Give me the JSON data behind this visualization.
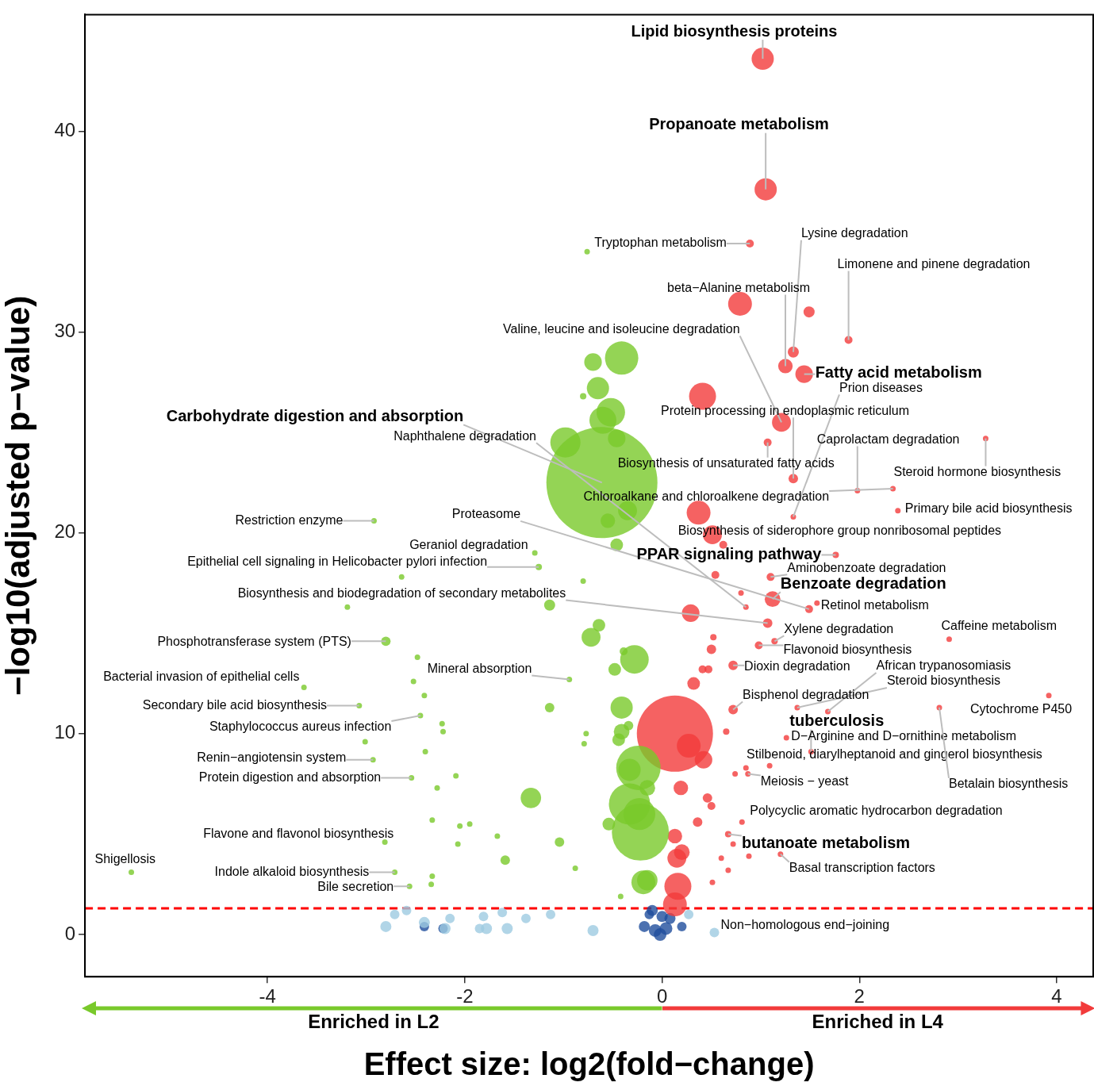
{
  "chart_data": {
    "type": "bubble",
    "xlabel": "Effect size: log2(fold−change)",
    "ylabel": "−log10(adjusted p−value)",
    "xlim": [
      -5.85,
      4.37
    ],
    "ylim": [
      -2.1,
      45.8
    ],
    "xticks": [
      -4,
      -2,
      0,
      2,
      4
    ],
    "yticks": [
      0,
      10,
      20,
      30,
      40
    ],
    "series": [
      {
        "color": "#79c92b",
        "x": [
          -0.76,
          -0.41,
          -0.7,
          -0.65,
          -0.8,
          -0.52,
          -0.6,
          -0.98,
          -0.46,
          -0.61,
          -0.35,
          -0.55,
          -0.46,
          -2.92,
          -1.29,
          -1.25,
          -2.64,
          -0.8,
          -1.14,
          -3.19,
          -0.64,
          -0.72,
          -2.8,
          -0.28,
          -0.39,
          -0.48,
          -2.48,
          -0.94,
          -2.52,
          -3.63,
          -2.41,
          -0.41,
          -1.14,
          -3.07,
          -2.45,
          -2.23,
          -2.22,
          -0.41,
          -0.34,
          -0.44,
          -0.77,
          -0.79,
          -3.01,
          -0.24,
          -2.4,
          -2.93,
          -0.15,
          -2.54,
          -2.09,
          -2.28,
          -1.33,
          -0.33,
          -0.23,
          -0.54,
          -2.33,
          -2.05,
          -1.95,
          -0.22,
          -1.67,
          -1.04,
          -2.81,
          -2.07,
          -1.59,
          -0.88,
          -5.38,
          -2.71,
          -2.33,
          -2.34,
          -0.15,
          -2.56,
          -0.42,
          -0.33,
          -0.19
        ],
        "values": [
          34.0,
          28.7,
          28.5,
          27.2,
          26.8,
          26.0,
          25.6,
          24.5,
          24.7,
          22.5,
          21.1,
          20.6,
          19.4,
          20.6,
          19.0,
          18.3,
          17.8,
          17.6,
          16.4,
          16.3,
          15.4,
          14.8,
          14.6,
          13.7,
          14.1,
          13.2,
          13.8,
          12.7,
          12.6,
          12.3,
          11.9,
          11.3,
          11.3,
          11.4,
          10.9,
          10.5,
          10.1,
          10.1,
          10.4,
          9.7,
          10.0,
          9.5,
          9.6,
          8.3,
          9.1,
          8.7,
          7.3,
          7.8,
          7.9,
          7.3,
          6.8,
          6.5,
          6.0,
          5.5,
          5.7,
          5.4,
          5.5,
          5.1,
          4.9,
          4.6,
          4.6,
          4.5,
          3.7,
          3.3,
          3.1,
          3.1,
          2.9,
          2.5,
          2.7,
          2.4,
          1.9,
          8.2,
          2.6
        ],
        "sizes": [
          0.0025,
          0.09,
          0.025,
          0.04,
          0.0033,
          0.066,
          0.059,
          0.074,
          0.025,
          1,
          0.029,
          0.017,
          0.013,
          0.0025,
          0.0025,
          0.0033,
          0.0025,
          0.0025,
          0.01,
          0.0025,
          0.013,
          0.029,
          0.0073,
          0.066,
          0.0051,
          0.013,
          0.0025,
          0.0025,
          0.0025,
          0.0025,
          0.0025,
          0.04,
          0.0073,
          0.0025,
          0.0025,
          0.0025,
          0.0025,
          0.02,
          0.0073,
          0.013,
          0.0025,
          0.0025,
          0.0025,
          0.16,
          0.0025,
          0.0025,
          0.02,
          0.0025,
          0.0025,
          0.0025,
          0.034,
          0.138,
          0.082,
          0.013,
          0.0025,
          0.0025,
          0.0025,
          0.264,
          0.0025,
          0.0073,
          0.0025,
          0.0025,
          0.0073,
          0.0025,
          0.0025,
          0.0025,
          0.0025,
          0.0025,
          0.034,
          0.0025,
          0.0025,
          0.04,
          0.046
        ]
      },
      {
        "color": "#f23b3b",
        "x": [
          1.02,
          1.05,
          0.89,
          0.79,
          1.49,
          1.89,
          1.33,
          1.25,
          1.44,
          0.41,
          1.21,
          1.07,
          3.28,
          1.33,
          1.98,
          2.34,
          2.39,
          1.33,
          0.37,
          0.51,
          0.62,
          1.76,
          0.54,
          1.1,
          1.12,
          0.8,
          0.85,
          1.57,
          1.49,
          0.29,
          1.07,
          0.52,
          0.98,
          0.5,
          1.14,
          2.91,
          0.72,
          0.41,
          0.47,
          0.32,
          3.92,
          0.72,
          0.13,
          0.27,
          0.42,
          0.65,
          1.37,
          1.68,
          2.81,
          1.26,
          1.51,
          1.09,
          0.85,
          0.74,
          0.87,
          0.19,
          0.46,
          0.5,
          0.81,
          0.36,
          0.67,
          0.72,
          0.13,
          0.15,
          0.2,
          0.16,
          0.13,
          0.6,
          0.51,
          0.88,
          1.2,
          0.67
        ],
        "values": [
          43.6,
          37.1,
          34.4,
          31.4,
          31.0,
          29.6,
          29.0,
          28.3,
          27.9,
          26.8,
          25.5,
          24.5,
          24.7,
          22.7,
          22.1,
          22.2,
          21.1,
          20.8,
          21.0,
          19.9,
          19.4,
          18.9,
          17.9,
          17.8,
          16.7,
          17.0,
          16.3,
          16.5,
          16.2,
          16.0,
          15.5,
          14.8,
          14.4,
          14.2,
          14.6,
          14.7,
          13.4,
          13.2,
          13.2,
          12.5,
          11.9,
          11.2,
          10.0,
          9.4,
          8.7,
          10.1,
          11.3,
          11.1,
          11.3,
          9.8,
          9.1,
          8.4,
          8.3,
          8.0,
          8.0,
          7.3,
          6.8,
          6.4,
          5.6,
          5.6,
          5.0,
          4.5,
          4.9,
          3.8,
          4.1,
          2.4,
          1.5,
          3.8,
          2.6,
          3.9,
          4.0,
          3.2
        ],
        "sizes": [
          0.04,
          0.04,
          0.0051,
          0.046,
          0.01,
          0.0051,
          0.01,
          0.017,
          0.025,
          0.059,
          0.029,
          0.0051,
          0.0025,
          0.0073,
          0.0025,
          0.0025,
          0.0025,
          0.0025,
          0.046,
          0.029,
          0.0051,
          0.0033,
          0.0051,
          0.0051,
          0.02,
          0.0025,
          0.0025,
          0.0025,
          0.0051,
          0.025,
          0.0073,
          0.0033,
          0.0051,
          0.0073,
          0.0033,
          0.0025,
          0.0073,
          0.0051,
          0.0051,
          0.013,
          0.0025,
          0.0073,
          0.47,
          0.046,
          0.025,
          0.0033,
          0.0025,
          0.0025,
          0.0025,
          0.0025,
          0.0025,
          0.0025,
          0.0025,
          0.0025,
          0.0025,
          0.017,
          0.0073,
          0.0051,
          0.0025,
          0.0073,
          0.0033,
          0.0025,
          0.017,
          0.029,
          0.02,
          0.059,
          0.046,
          0.0025,
          0.0025,
          0.0025,
          0.0025,
          0.0025
        ]
      },
      {
        "color": "#9ecae1",
        "x": [
          -2.8,
          -2.71,
          -2.59,
          -2.41,
          -2.2,
          -2.15,
          -1.85,
          -1.81,
          -1.78,
          -1.62,
          -1.57,
          -1.38,
          -1.13,
          -0.7,
          0.27,
          0.53
        ],
        "values": [
          0.4,
          1.0,
          1.2,
          0.6,
          0.3,
          0.8,
          0.3,
          0.9,
          0.3,
          1.1,
          0.3,
          0.8,
          1.0,
          0.2,
          1.0,
          0.1
        ],
        "sizes": [
          0.01,
          0.0073,
          0.0073,
          0.01,
          0.01,
          0.0073,
          0.0073,
          0.0073,
          0.01,
          0.0073,
          0.01,
          0.0073,
          0.0073,
          0.01,
          0.0073,
          0.0073
        ]
      },
      {
        "color": "#1f4e9c",
        "x": [
          -0.18,
          -0.1,
          -0.07,
          -0.02,
          0.04,
          0.08,
          0.0,
          0.2,
          -0.13,
          -2.22,
          -2.41
        ],
        "values": [
          0.4,
          1.2,
          0.2,
          0.0,
          0.3,
          0.8,
          0.9,
          0.4,
          1.0,
          0.3,
          0.4
        ],
        "sizes": [
          0.01,
          0.01,
          0.013,
          0.013,
          0.013,
          0.01,
          0.01,
          0.0073,
          0.0073,
          0.0073,
          0.0073
        ]
      }
    ],
    "ref_lines": [
      {
        "axis": "y",
        "value": 1.3,
        "color": "#ff0000",
        "line_style": "dashed"
      }
    ],
    "annotations": [
      {
        "text": "Lipid biosynthesis proteins",
        "x": 1.02,
        "y": 43.6
      },
      {
        "text": "Propanoate metabolism",
        "x": 1.05,
        "y": 37.1
      },
      {
        "text": "Tryptophan metabolism",
        "x": 0.89,
        "y": 34.4
      },
      {
        "text": "Lysine degradation",
        "x": 1.33,
        "y": 29.0
      },
      {
        "text": "Limonene and pinene degradation",
        "x": 1.89,
        "y": 29.6
      },
      {
        "text": "beta−Alanine metabolism",
        "x": 1.25,
        "y": 28.3
      },
      {
        "text": "Valine, leucine and isoleucine degradation",
        "x": 1.21,
        "y": 25.5
      },
      {
        "text": "Fatty acid metabolism",
        "x": 1.44,
        "y": 27.9
      },
      {
        "text": "Prion diseases",
        "x": 1.33,
        "y": 20.8
      },
      {
        "text": "Protein processing in endoplasmic reticulum",
        "x": 1.33,
        "y": 22.7
      },
      {
        "text": "Caprolactam degradation",
        "x": 1.98,
        "y": 22.1
      },
      {
        "text": "Steroid hormone biosynthesis",
        "x": 3.28,
        "y": 24.7
      },
      {
        "text": "Primary bile acid biosynthesis",
        "x": 2.39,
        "y": 21.1
      },
      {
        "text": "Carbohydrate digestion and absorption",
        "x": -0.61,
        "y": 22.5
      },
      {
        "text": "Naphthalene degradation",
        "x": 0.85,
        "y": 16.3
      },
      {
        "text": "Biosynthesis of unsaturated fatty acids",
        "x": 1.07,
        "y": 24.5
      },
      {
        "text": "Chloroalkane and chloroalkene degradation",
        "x": 2.34,
        "y": 22.2
      },
      {
        "text": "Restriction enzyme",
        "x": -2.92,
        "y": 20.6
      },
      {
        "text": "Proteasome",
        "x": 1.49,
        "y": 16.2
      },
      {
        "text": "Biosynthesis of siderophore group nonribosomal peptides",
        "x": 0.62,
        "y": 19.4
      },
      {
        "text": "Geraniol degradation",
        "x": -1.29,
        "y": 19.0
      },
      {
        "text": "PPAR signaling pathway",
        "x": 1.76,
        "y": 18.9
      },
      {
        "text": "Epithelial cell signaling in Helicobacter pylori infection",
        "x": -1.25,
        "y": 18.3
      },
      {
        "text": "Aminobenzoate degradation",
        "x": 1.1,
        "y": 17.8
      },
      {
        "text": "Benzoate degradation",
        "x": 1.12,
        "y": 16.7
      },
      {
        "text": "Biosynthesis and biodegradation of secondary metabolites",
        "x": 1.07,
        "y": 15.5
      },
      {
        "text": "Retinol metabolism",
        "x": 1.57,
        "y": 16.5
      },
      {
        "text": "Xylene degradation",
        "x": 1.14,
        "y": 14.6
      },
      {
        "text": "Caffeine metabolism",
        "x": 2.91,
        "y": 14.7
      },
      {
        "text": "Flavonoid biosynthesis",
        "x": 0.98,
        "y": 14.4
      },
      {
        "text": "Phosphotransferase system (PTS)",
        "x": -2.8,
        "y": 14.6
      },
      {
        "text": "Mineral absorption",
        "x": -0.94,
        "y": 12.7
      },
      {
        "text": "Bacterial invasion of epithelial cells",
        "x": -3.63,
        "y": 12.3
      },
      {
        "text": "Dioxin degradation",
        "x": 0.72,
        "y": 13.4
      },
      {
        "text": "African trypanosomiasis",
        "x": 1.68,
        "y": 11.1
      },
      {
        "text": "Steroid biosynthesis",
        "x": 1.37,
        "y": 11.3
      },
      {
        "text": "Bisphenol degradation",
        "x": 0.72,
        "y": 11.2
      },
      {
        "text": "Cytochrome P450",
        "x": 3.92,
        "y": 11.9
      },
      {
        "text": "Secondary bile acid biosynthesis",
        "x": -3.07,
        "y": 11.4
      },
      {
        "text": "tuberculosis",
        "x": 1.51,
        "y": 9.1
      },
      {
        "text": "D−Arginine and D−ornithine metabolism",
        "x": 1.26,
        "y": 9.8
      },
      {
        "text": "Staphylococcus aureus infection",
        "x": -2.45,
        "y": 10.9
      },
      {
        "text": "Stilbenoid, diarylheptanoid and gingerol biosynthesis",
        "x": 1.09,
        "y": 8.4
      },
      {
        "text": "Renin−angiotensin system",
        "x": -2.93,
        "y": 8.7
      },
      {
        "text": "Meiosis − yeast",
        "x": 0.87,
        "y": 8.0
      },
      {
        "text": "Betalain biosynthesis",
        "x": 2.81,
        "y": 11.3
      },
      {
        "text": "Protein digestion and absorption",
        "x": -2.54,
        "y": 7.8
      },
      {
        "text": "Polycyclic aromatic hydrocarbon degradation",
        "x": 0.81,
        "y": 5.6
      },
      {
        "text": "Flavone and flavonol biosynthesis",
        "x": -2.81,
        "y": 4.6
      },
      {
        "text": "butanoate metabolism",
        "x": 0.67,
        "y": 5.0
      },
      {
        "text": "Shigellosis",
        "x": -5.38,
        "y": 3.1
      },
      {
        "text": "Basal transcription factors",
        "x": 1.2,
        "y": 4.0
      },
      {
        "text": "Indole alkaloid biosynthesis",
        "x": -2.71,
        "y": 3.1
      },
      {
        "text": "Bile secretion",
        "x": -2.56,
        "y": 2.4
      },
      {
        "text": "Non−homologous end−joining",
        "x": 0.53,
        "y": 0.1
      },
      "Enriched in L2",
      "Enriched in L4"
    ]
  }
}
